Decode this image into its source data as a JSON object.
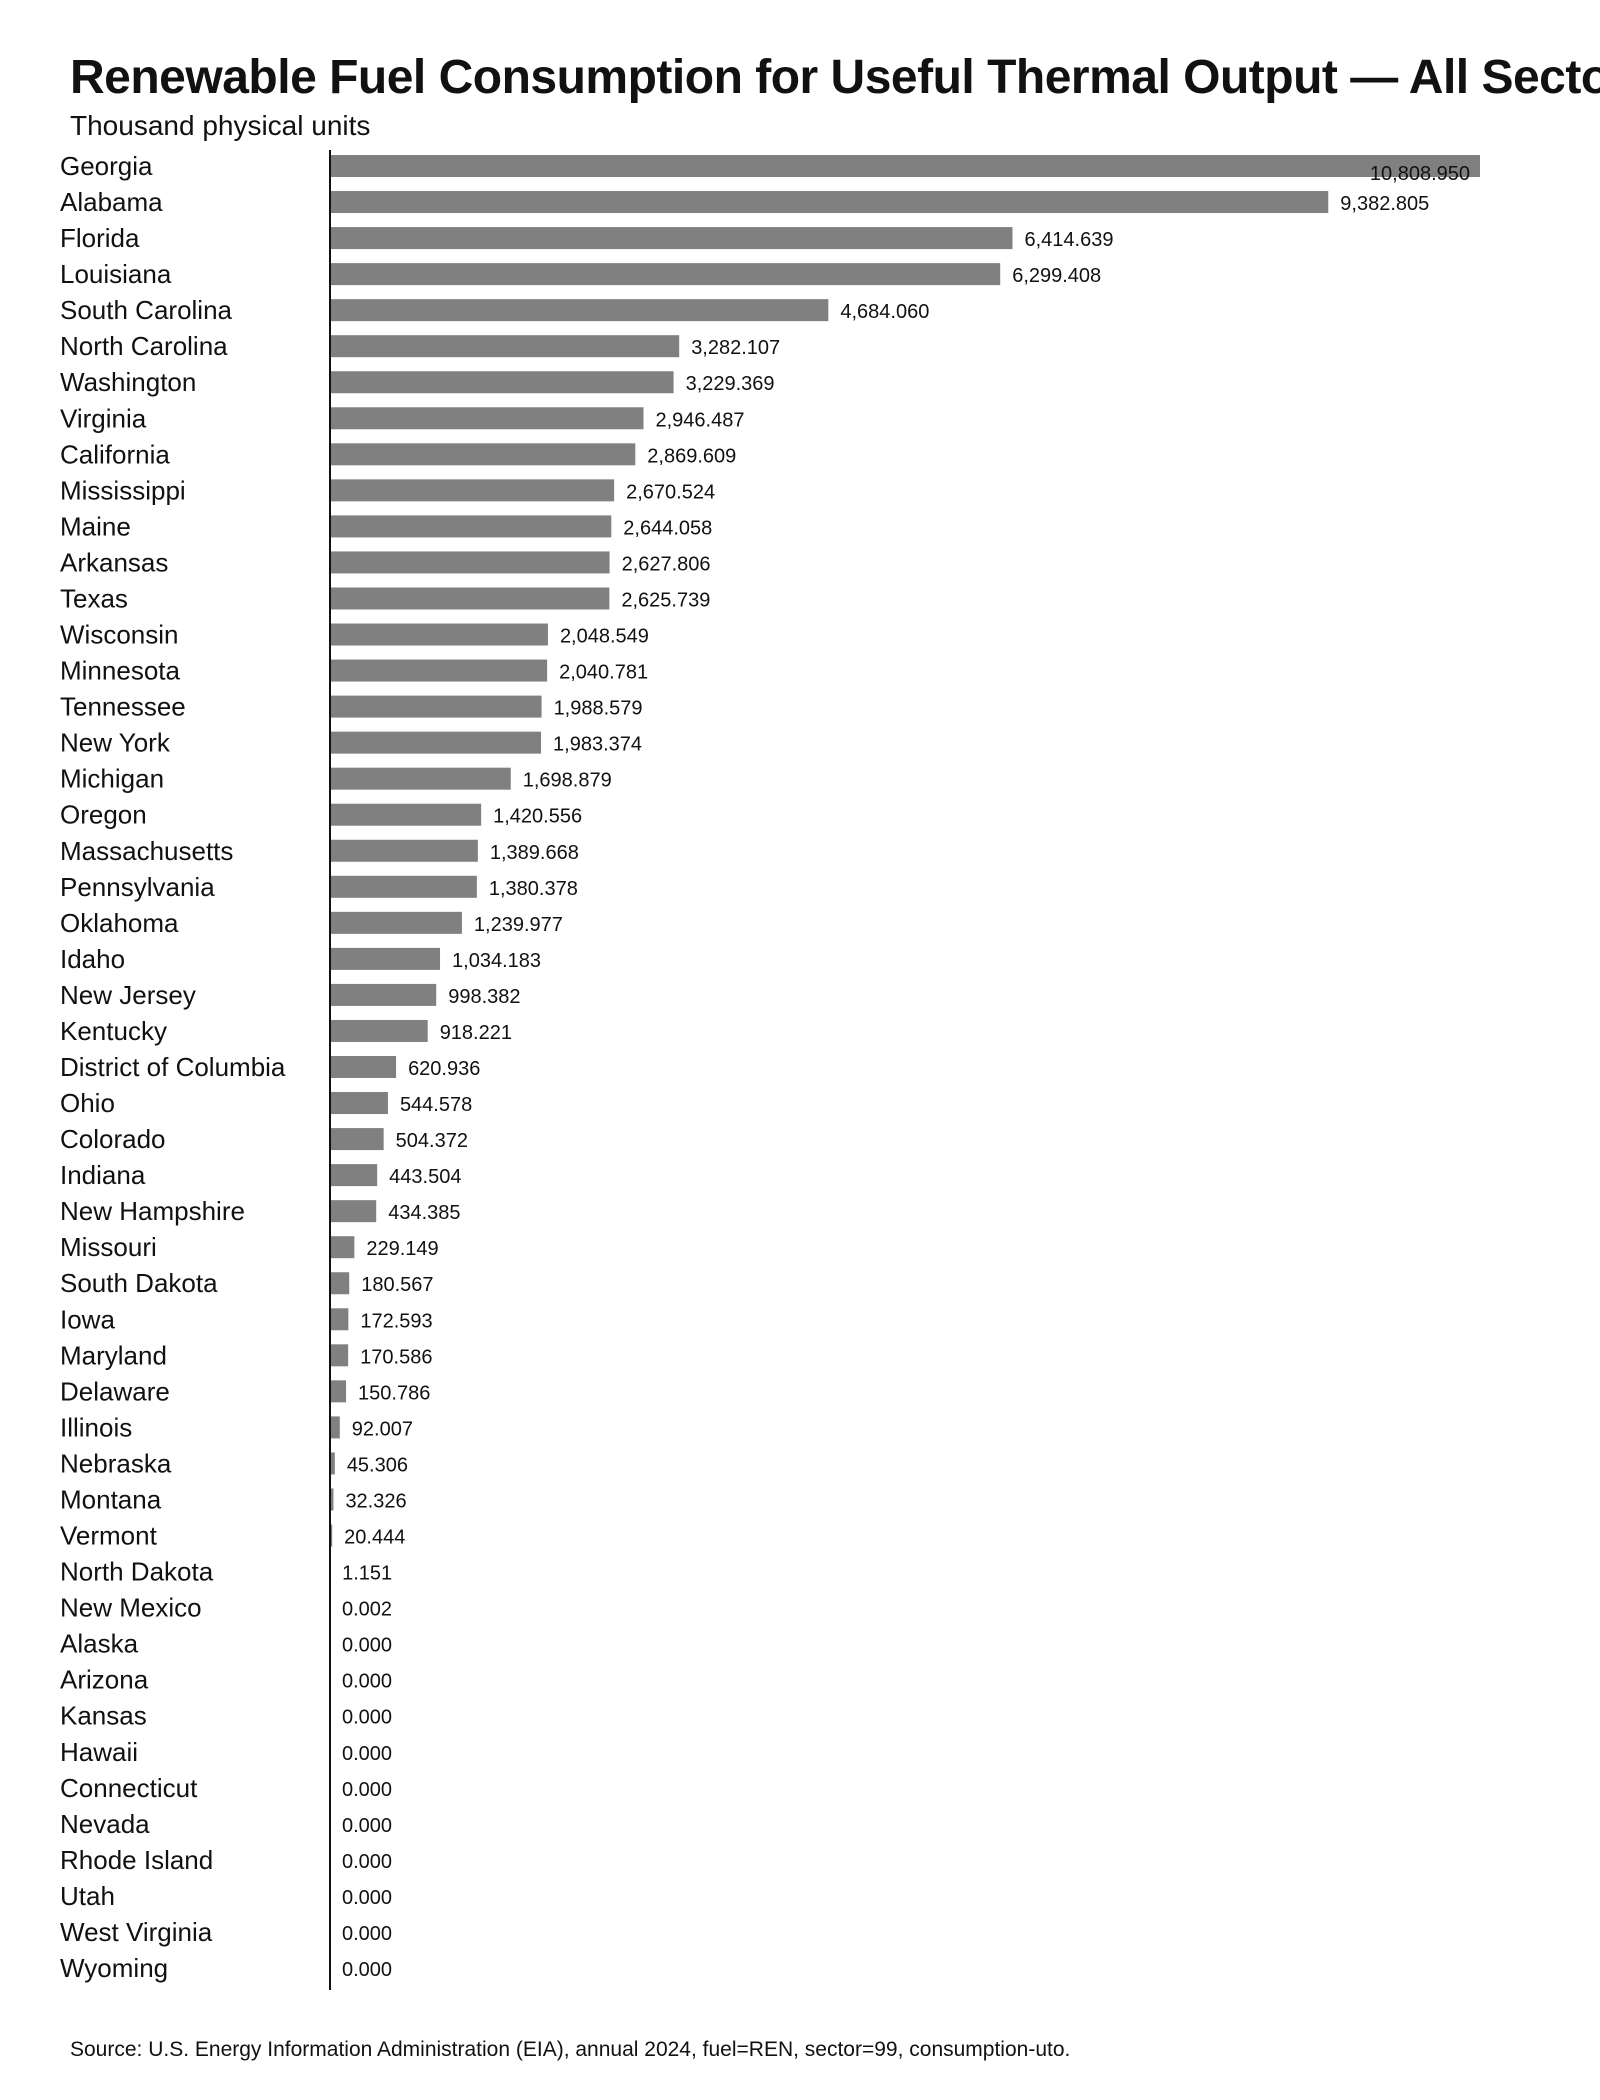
{
  "chart_data": {
    "type": "bar",
    "orientation": "horizontal",
    "title": "Renewable Fuel Consumption for Useful Thermal Output — All Sectors",
    "subtitle": "Thousand physical units",
    "source": "Source: U.S. Energy Information Administration (EIA), annual 2024, fuel=REN, sector=99, consumption-uto.",
    "bar_color": "#808080",
    "xlim": [
      0,
      10808.95
    ],
    "value_labels": [
      "10,808.950",
      "9,382.805",
      "6,414.639",
      "6,299.408",
      "4,684.060",
      "3,282.107",
      "3,229.369",
      "2,946.487",
      "2,869.609",
      "2,670.524",
      "2,644.058",
      "2,627.806",
      "2,625.739",
      "2,048.549",
      "2,040.781",
      "1,988.579",
      "1,983.374",
      "1,698.879",
      "1,420.556",
      "1,389.668",
      "1,380.378",
      "1,239.977",
      "1,034.183",
      "998.382",
      "918.221",
      "620.936",
      "544.578",
      "504.372",
      "443.504",
      "434.385",
      "229.149",
      "180.567",
      "172.593",
      "170.586",
      "150.786",
      "92.007",
      "45.306",
      "32.326",
      "20.444",
      "1.151",
      "0.002",
      "0.000",
      "0.000",
      "0.000",
      "0.000",
      "0.000",
      "0.000",
      "0.000",
      "0.000",
      "0.000",
      "0.000"
    ],
    "categories": [
      "Georgia",
      "Alabama",
      "Florida",
      "Louisiana",
      "South Carolina",
      "North Carolina",
      "Washington",
      "Virginia",
      "California",
      "Mississippi",
      "Maine",
      "Arkansas",
      "Texas",
      "Wisconsin",
      "Minnesota",
      "Tennessee",
      "New York",
      "Michigan",
      "Oregon",
      "Massachusetts",
      "Pennsylvania",
      "Oklahoma",
      "Idaho",
      "New Jersey",
      "Kentucky",
      "District of Columbia",
      "Ohio",
      "Colorado",
      "Indiana",
      "New Hampshire",
      "Missouri",
      "South Dakota",
      "Iowa",
      "Maryland",
      "Delaware",
      "Illinois",
      "Nebraska",
      "Montana",
      "Vermont",
      "North Dakota",
      "New Mexico",
      "Alaska",
      "Arizona",
      "Kansas",
      "Hawaii",
      "Connecticut",
      "Nevada",
      "Rhode Island",
      "Utah",
      "West Virginia",
      "Wyoming"
    ],
    "values": [
      10808.95,
      9382.805,
      6414.639,
      6299.408,
      4684.06,
      3282.107,
      3229.369,
      2946.487,
      2869.609,
      2670.524,
      2644.058,
      2627.806,
      2625.739,
      2048.549,
      2040.781,
      1988.579,
      1983.374,
      1698.879,
      1420.556,
      1389.668,
      1380.378,
      1239.977,
      1034.183,
      998.382,
      918.221,
      620.936,
      544.578,
      504.372,
      443.504,
      434.385,
      229.149,
      180.567,
      172.593,
      170.586,
      150.786,
      92.007,
      45.306,
      32.326,
      20.444,
      1.151,
      0.002,
      0.0,
      0.0,
      0.0,
      0.0,
      0.0,
      0.0,
      0.0,
      0.0,
      0.0,
      0.0
    ]
  }
}
